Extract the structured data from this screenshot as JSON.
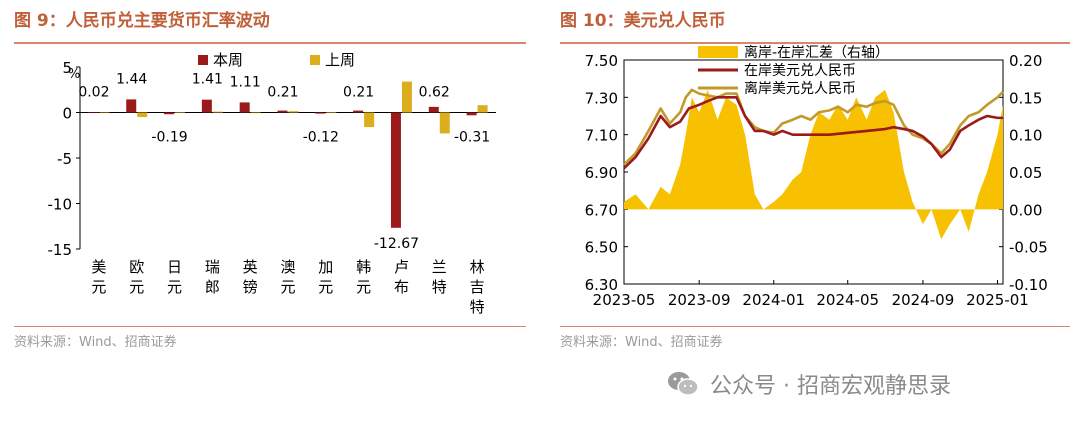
{
  "left": {
    "title": "图 9：人民币兑主要货币汇率波动",
    "source": "资料来源：Wind、招商证券"
  },
  "right": {
    "title": "图 10：美元兑人民币",
    "source": "资料来源：Wind、招商证券"
  },
  "watermark": {
    "text": "公众号 · 招商宏观静思录",
    "icon": "wechat-icon"
  },
  "colors": {
    "dark_red": "#9b1b1c",
    "gold": "#dcae1d",
    "bright_gold": "#f7c000",
    "title": "#c0603a",
    "grid": "#000000"
  },
  "chart_data": [
    {
      "type": "bar",
      "ylabel": "%",
      "ylim": [
        -15,
        5
      ],
      "yticks": [
        5,
        0,
        -5,
        -10,
        -15
      ],
      "grid": false,
      "legend_position": "top",
      "categories": [
        "美\n元",
        "欧\n元",
        "日\n元",
        "瑞\n郎",
        "英\n镑",
        "澳\n元",
        "加\n元",
        "韩\n元",
        "卢\n布",
        "兰\n特",
        "林\n吉\n特"
      ],
      "series": [
        {
          "name": "本周",
          "color": "#9b1b1c",
          "values": [
            0.02,
            1.44,
            -0.19,
            1.41,
            1.11,
            0.21,
            -0.12,
            0.21,
            -12.67,
            0.62,
            -0.31
          ]
        },
        {
          "name": "上周",
          "color": "#dcae1d",
          "values": [
            0.0,
            -0.5,
            0.05,
            0.1,
            0.0,
            0.15,
            0.05,
            -1.6,
            3.4,
            -2.3,
            0.8
          ]
        }
      ],
      "data_labels": [
        "0.02",
        "1.44",
        "-0.19",
        "1.41",
        "1.11",
        "0.21",
        "-0.12",
        "0.21",
        "-12.67",
        "0.62",
        "-0.31"
      ]
    },
    {
      "type": "line",
      "ylim": [
        6.3,
        7.5
      ],
      "yticks": [
        "7.50",
        "7.30",
        "7.10",
        "6.90",
        "6.70",
        "6.50",
        "6.30"
      ],
      "y2lim": [
        -0.1,
        0.2
      ],
      "y2ticks": [
        "0.20",
        "0.15",
        "0.10",
        "0.05",
        "0.00",
        "-0.05",
        "-0.10"
      ],
      "xticks": [
        "2023-05",
        "2023-09",
        "2024-01",
        "2024-05",
        "2024-09",
        "2025-01"
      ],
      "grid": false,
      "legend_position": "top",
      "series": [
        {
          "name": "离岸-在岸汇差（右轴）",
          "kind": "area",
          "axis": "right",
          "color": "#f7c000",
          "x": [
            "2023-05-01",
            "2023-05-20",
            "2023-06-10",
            "2023-06-30",
            "2023-07-15",
            "2023-08-01",
            "2023-08-10",
            "2023-08-20",
            "2023-09-01",
            "2023-09-15",
            "2023-10-01",
            "2023-10-15",
            "2023-11-01",
            "2023-11-15",
            "2023-12-01",
            "2023-12-15",
            "2024-01-01",
            "2024-01-15",
            "2024-02-01",
            "2024-02-15",
            "2024-03-01",
            "2024-03-15",
            "2024-04-01",
            "2024-04-15",
            "2024-05-01",
            "2024-05-15",
            "2024-06-01",
            "2024-06-15",
            "2024-07-01",
            "2024-07-15",
            "2024-08-01",
            "2024-08-15",
            "2024-09-01",
            "2024-09-15",
            "2024-10-01",
            "2024-10-15",
            "2024-11-01",
            "2024-11-15",
            "2024-12-01",
            "2024-12-15",
            "2025-01-01",
            "2025-01-10"
          ],
          "values": [
            0.01,
            0.02,
            0.0,
            0.03,
            0.02,
            0.06,
            0.1,
            0.15,
            0.13,
            0.16,
            0.12,
            0.15,
            0.14,
            0.1,
            0.02,
            0.0,
            0.01,
            0.02,
            0.04,
            0.05,
            0.1,
            0.13,
            0.12,
            0.14,
            0.12,
            0.15,
            0.12,
            0.15,
            0.16,
            0.13,
            0.05,
            0.01,
            -0.02,
            0.0,
            -0.04,
            -0.02,
            0.0,
            -0.03,
            0.02,
            0.05,
            0.1,
            0.14
          ]
        },
        {
          "name": "在岸美元兑人民币",
          "kind": "line",
          "axis": "left",
          "color": "#9b1b1c",
          "x": [
            "2023-05-01",
            "2023-05-20",
            "2023-06-10",
            "2023-06-30",
            "2023-07-15",
            "2023-08-01",
            "2023-08-15",
            "2023-09-01",
            "2023-09-15",
            "2023-10-01",
            "2023-10-15",
            "2023-11-01",
            "2023-11-15",
            "2023-12-01",
            "2023-12-15",
            "2024-01-01",
            "2024-01-15",
            "2024-02-01",
            "2024-03-01",
            "2024-04-01",
            "2024-05-01",
            "2024-06-01",
            "2024-07-01",
            "2024-07-15",
            "2024-08-01",
            "2024-08-15",
            "2024-09-01",
            "2024-09-15",
            "2024-10-01",
            "2024-10-15",
            "2024-11-01",
            "2024-11-15",
            "2024-12-01",
            "2024-12-15",
            "2025-01-01",
            "2025-01-10"
          ],
          "values": [
            6.92,
            6.98,
            7.08,
            7.2,
            7.14,
            7.17,
            7.24,
            7.26,
            7.28,
            7.3,
            7.3,
            7.3,
            7.2,
            7.12,
            7.12,
            7.1,
            7.12,
            7.1,
            7.1,
            7.1,
            7.11,
            7.12,
            7.13,
            7.14,
            7.13,
            7.12,
            7.09,
            7.05,
            6.98,
            7.02,
            7.12,
            7.15,
            7.18,
            7.2,
            7.19,
            7.19
          ]
        },
        {
          "name": "离岸美元兑人民币",
          "kind": "line",
          "axis": "left",
          "color": "#c29a2a",
          "x": [
            "2023-05-01",
            "2023-05-20",
            "2023-06-10",
            "2023-06-30",
            "2023-07-15",
            "2023-08-01",
            "2023-08-10",
            "2023-08-20",
            "2023-09-01",
            "2023-09-15",
            "2023-10-01",
            "2023-10-15",
            "2023-11-01",
            "2023-11-15",
            "2023-12-01",
            "2023-12-15",
            "2024-01-01",
            "2024-01-15",
            "2024-02-01",
            "2024-02-15",
            "2024-03-01",
            "2024-03-15",
            "2024-04-01",
            "2024-04-15",
            "2024-05-01",
            "2024-05-15",
            "2024-06-01",
            "2024-06-15",
            "2024-07-01",
            "2024-07-15",
            "2024-08-01",
            "2024-08-15",
            "2024-09-01",
            "2024-09-15",
            "2024-10-01",
            "2024-10-15",
            "2024-11-01",
            "2024-11-15",
            "2024-12-01",
            "2024-12-15",
            "2025-01-01",
            "2025-01-10"
          ],
          "values": [
            6.94,
            7.0,
            7.12,
            7.24,
            7.16,
            7.22,
            7.3,
            7.34,
            7.32,
            7.31,
            7.3,
            7.32,
            7.32,
            7.2,
            7.14,
            7.12,
            7.11,
            7.16,
            7.18,
            7.2,
            7.18,
            7.22,
            7.23,
            7.25,
            7.22,
            7.26,
            7.25,
            7.27,
            7.28,
            7.26,
            7.15,
            7.1,
            7.08,
            7.05,
            7.0,
            7.05,
            7.15,
            7.2,
            7.22,
            7.26,
            7.3,
            7.33
          ]
        }
      ]
    }
  ]
}
